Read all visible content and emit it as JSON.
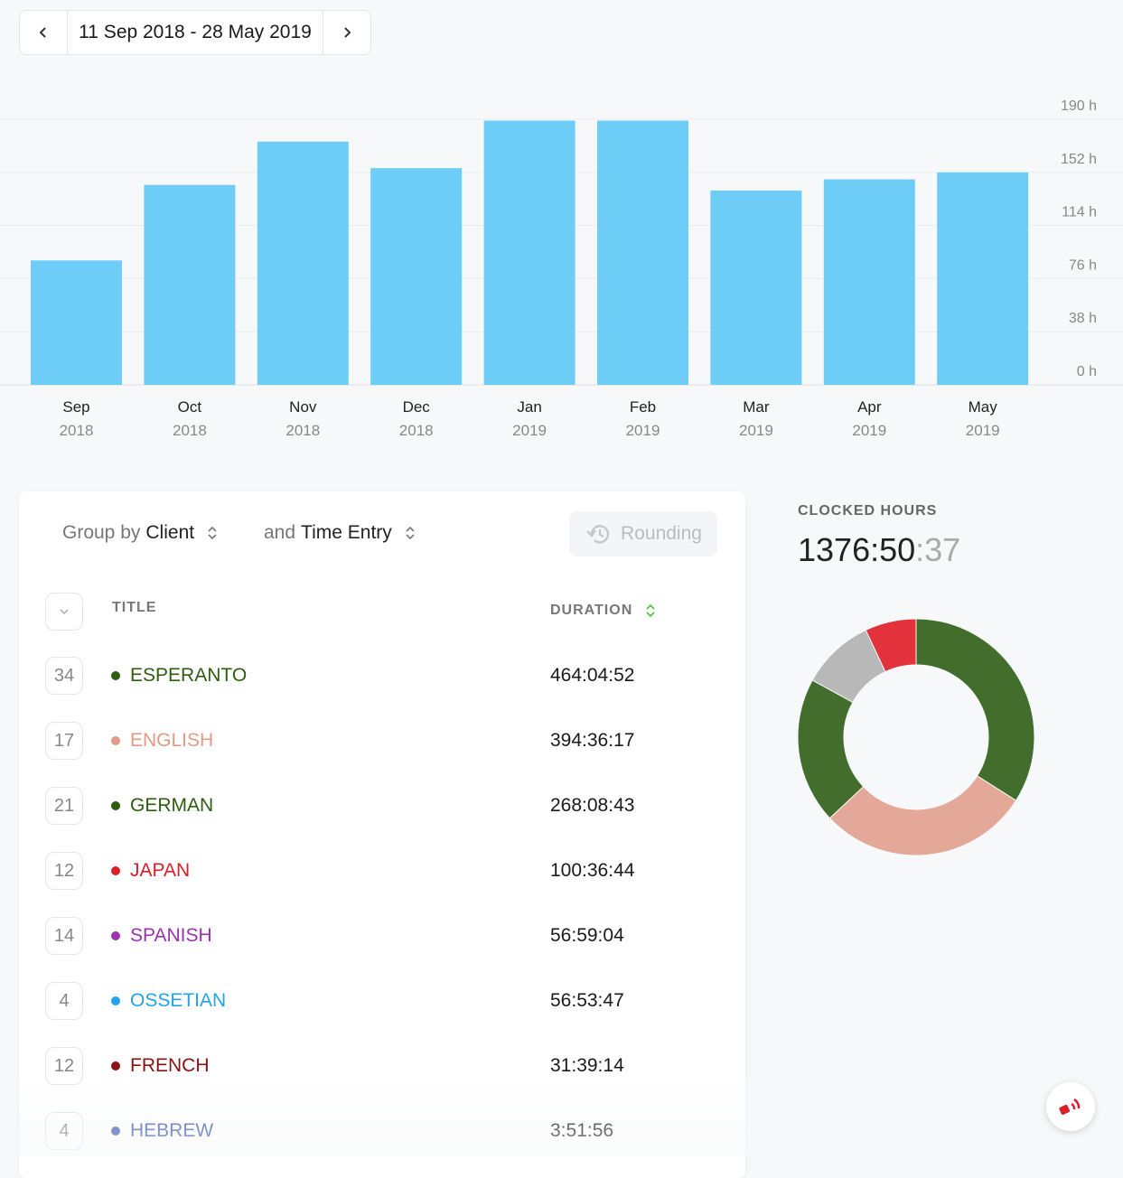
{
  "date_range": {
    "label": "11 Sep 2018 - 28 May 2019",
    "prev_icon": "chevron-left-icon",
    "next_icon": "chevron-right-icon"
  },
  "chart_data": {
    "type": "bar",
    "categories": [
      "Sep",
      "Oct",
      "Nov",
      "Dec",
      "Jan",
      "Feb",
      "Mar",
      "Apr",
      "May"
    ],
    "years": [
      "2018",
      "2018",
      "2018",
      "2018",
      "2019",
      "2019",
      "2019",
      "2019",
      "2019"
    ],
    "values": [
      89,
      143,
      174,
      155,
      189,
      189,
      139,
      147,
      152
    ],
    "y_ticks": [
      "190 h",
      "152 h",
      "114 h",
      "76 h",
      "38 h",
      "0 h"
    ],
    "ylim": [
      0,
      190
    ],
    "grid": true,
    "bar_color": "#6dcdf6"
  },
  "table": {
    "group_by_label": "Group by",
    "group_by_value": "Client",
    "group2_label": "and",
    "group2_value": "Time Entry",
    "rounding_label": "Rounding",
    "col_title": "TITLE",
    "col_duration": "DURATION",
    "rows": [
      {
        "count": "34",
        "title": "ESPERANTO",
        "duration": "464:04:52",
        "color": "#2e5d12"
      },
      {
        "count": "17",
        "title": "ENGLISH",
        "duration": "394:36:17",
        "color": "#e39a86"
      },
      {
        "count": "21",
        "title": "GERMAN",
        "duration": "268:08:43",
        "color": "#2e5d12"
      },
      {
        "count": "12",
        "title": "JAPAN",
        "duration": "100:36:44",
        "color": "#d8202b"
      },
      {
        "count": "14",
        "title": "SPANISH",
        "duration": "56:59:04",
        "color": "#9c32b2"
      },
      {
        "count": "4",
        "title": "OSSETIAN",
        "duration": "56:53:47",
        "color": "#24a4e8"
      },
      {
        "count": "12",
        "title": "FRENCH",
        "duration": "31:39:14",
        "color": "#8a1212"
      },
      {
        "count": "4",
        "title": "HEBREW",
        "duration": "3:51:56",
        "color": "#3b56b0"
      }
    ]
  },
  "clocked": {
    "label": "CLOCKED HOURS",
    "main": "1376:50",
    "seconds": ":37"
  },
  "donut": [
    {
      "value": 34,
      "color": "#426d2c"
    },
    {
      "value": 29,
      "color": "#e4a898"
    },
    {
      "value": 20,
      "color": "#426d2c"
    },
    {
      "value": 10,
      "color": "#b8b8b8"
    },
    {
      "value": 7,
      "color": "#e4323c"
    }
  ]
}
